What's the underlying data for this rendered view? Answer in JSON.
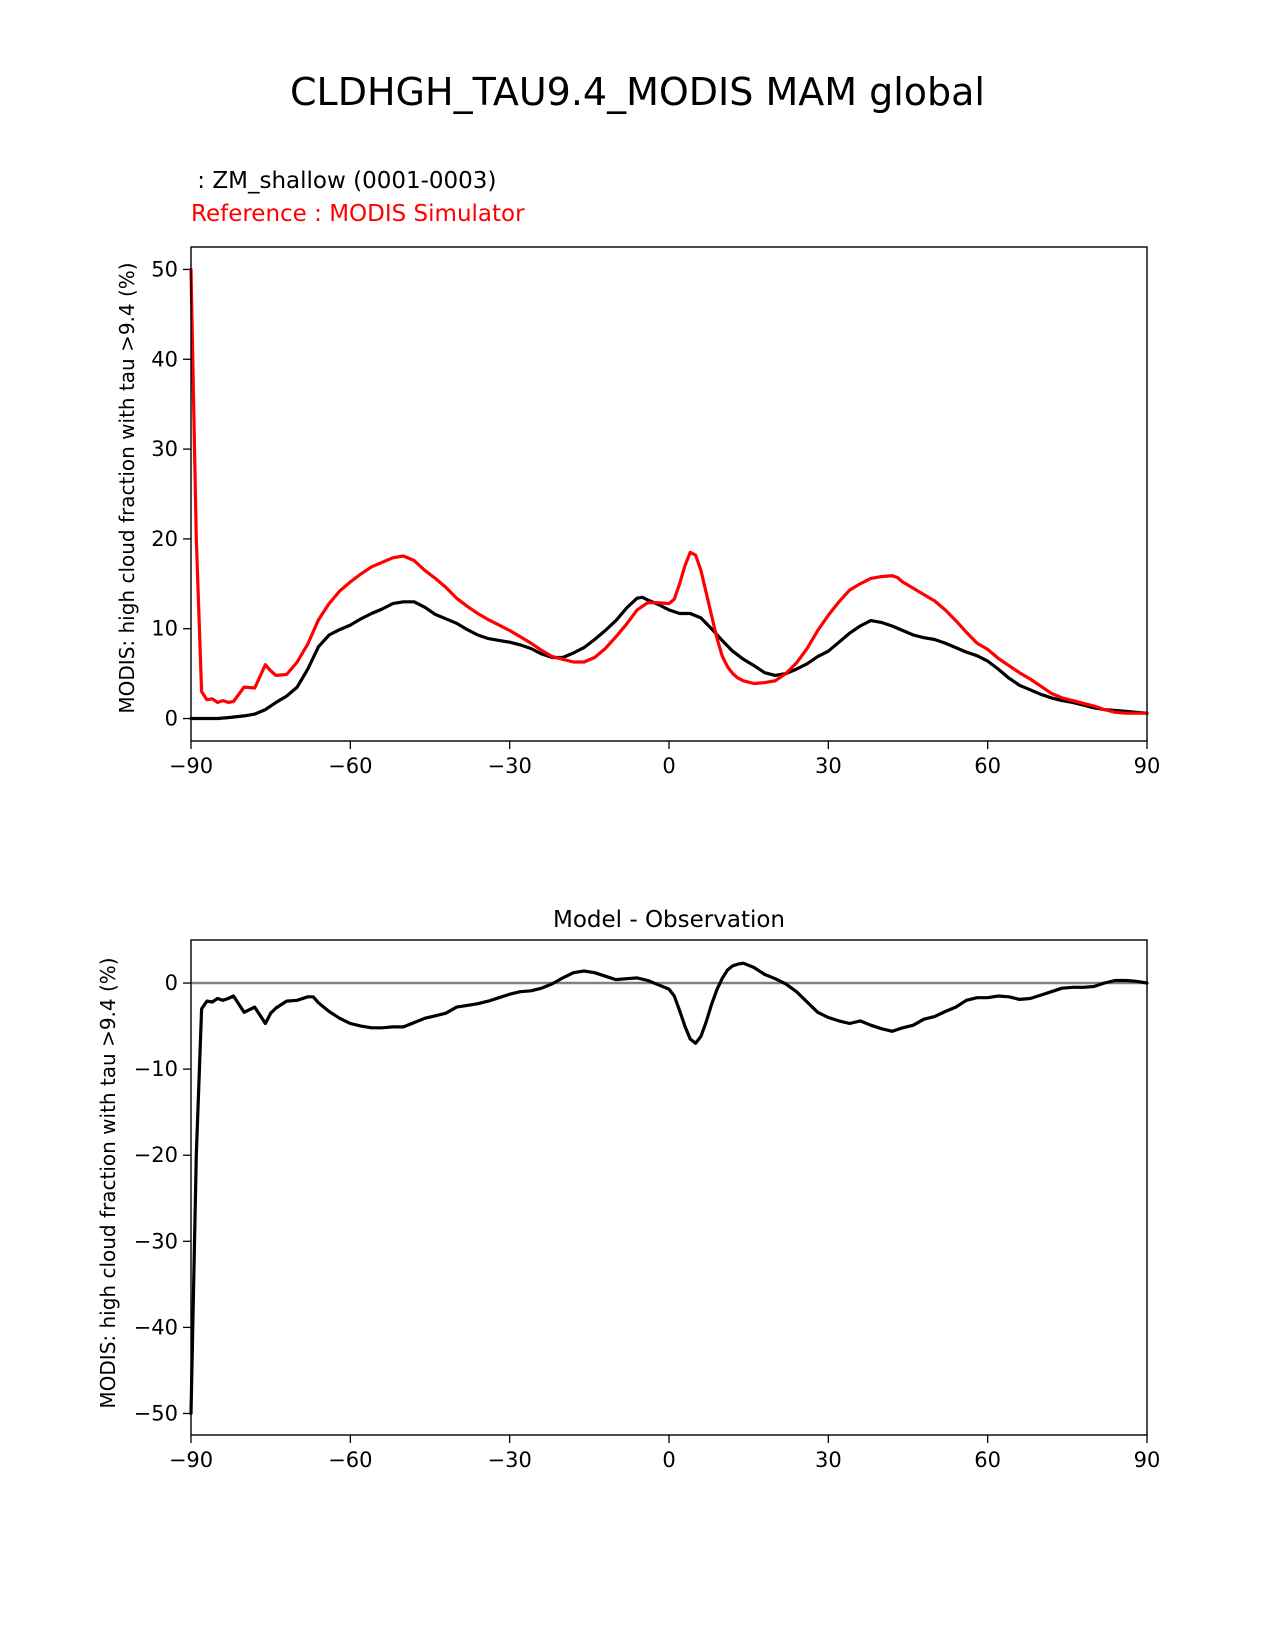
{
  "figure": {
    "title": "CLDHGH_TAU9.4_MODIS MAM global"
  },
  "chart_data": [
    {
      "type": "line",
      "test_label": " : ZM_shallow (0001-0003)",
      "reference_label": "Reference : MODIS Simulator",
      "ylabel": "MODIS: high cloud fraction with tau >9.4 (%)",
      "xlabel": "",
      "xlim": [
        -90,
        90
      ],
      "ylim": [
        -2.5,
        52.5
      ],
      "xticks": [
        -90,
        -60,
        -30,
        0,
        30,
        60,
        90
      ],
      "xtick_labels": [
        "−90",
        "−60",
        "−30",
        "0",
        "30",
        "60",
        "90"
      ],
      "yticks": [
        0,
        10,
        20,
        30,
        40,
        50
      ],
      "ytick_labels": [
        "0",
        "10",
        "20",
        "30",
        "40",
        "50"
      ],
      "grid": false,
      "colors": {
        "test": "#000000",
        "reference": "#ff0000"
      },
      "series": [
        {
          "role": "test",
          "x": [
            -90,
            -88,
            -85,
            -83,
            -80,
            -78,
            -76,
            -74,
            -72,
            -70,
            -68,
            -66,
            -64,
            -62,
            -60,
            -58,
            -56,
            -54,
            -52,
            -50,
            -48,
            -46,
            -44,
            -42,
            -40,
            -38,
            -36,
            -34,
            -32,
            -30,
            -28,
            -26,
            -24,
            -22,
            -20,
            -18,
            -16,
            -14,
            -12,
            -10,
            -8,
            -6,
            -5,
            -4,
            -2,
            0,
            2,
            4,
            6,
            8,
            10,
            12,
            14,
            16,
            18,
            20,
            22,
            24,
            26,
            28,
            30,
            32,
            34,
            36,
            38,
            40,
            42,
            44,
            46,
            48,
            50,
            52,
            54,
            56,
            58,
            60,
            62,
            64,
            66,
            68,
            70,
            72,
            74,
            76,
            78,
            80,
            82,
            84,
            86,
            88,
            90
          ],
          "values": [
            0.0,
            0.0,
            0.0,
            0.1,
            0.3,
            0.5,
            1.0,
            1.8,
            2.5,
            3.5,
            5.5,
            8.0,
            9.3,
            9.9,
            10.4,
            11.1,
            11.7,
            12.2,
            12.8,
            13.0,
            13.0,
            12.4,
            11.6,
            11.1,
            10.6,
            9.9,
            9.3,
            8.9,
            8.7,
            8.5,
            8.2,
            7.8,
            7.2,
            6.8,
            6.8,
            7.3,
            7.9,
            8.8,
            9.8,
            10.9,
            12.3,
            13.4,
            13.5,
            13.2,
            12.7,
            12.1,
            11.7,
            11.7,
            11.2,
            10.0,
            8.7,
            7.5,
            6.6,
            5.9,
            5.1,
            4.8,
            5.0,
            5.5,
            6.1,
            6.9,
            7.5,
            8.5,
            9.5,
            10.3,
            10.9,
            10.7,
            10.3,
            9.8,
            9.3,
            9.0,
            8.8,
            8.4,
            7.9,
            7.4,
            7.0,
            6.4,
            5.5,
            4.5,
            3.7,
            3.2,
            2.7,
            2.3,
            2.0,
            1.8,
            1.5,
            1.2,
            1.0,
            0.9,
            0.8,
            0.7,
            0.6
          ]
        },
        {
          "role": "reference",
          "x": [
            -90,
            -89,
            -88,
            -87,
            -86,
            -85,
            -84,
            -83,
            -82,
            -80,
            -78,
            -76,
            -75,
            -74,
            -72,
            -70,
            -68,
            -66,
            -64,
            -62,
            -60,
            -58,
            -56,
            -54,
            -52,
            -50,
            -48,
            -46,
            -44,
            -42,
            -40,
            -38,
            -36,
            -34,
            -32,
            -30,
            -28,
            -26,
            -24,
            -22,
            -20,
            -18,
            -16,
            -14,
            -12,
            -10,
            -8,
            -6,
            -4,
            -2,
            0,
            1,
            2,
            3,
            4,
            5,
            6,
            7,
            8,
            9,
            10,
            11,
            12,
            13,
            14,
            16,
            18,
            20,
            22,
            24,
            26,
            28,
            30,
            32,
            34,
            36,
            38,
            40,
            42,
            43,
            44,
            46,
            48,
            50,
            52,
            54,
            56,
            58,
            60,
            62,
            64,
            66,
            68,
            70,
            72,
            74,
            76,
            78,
            80,
            82,
            84,
            86,
            88,
            90
          ],
          "values": [
            50.0,
            20.0,
            3.0,
            2.1,
            2.2,
            1.8,
            2.0,
            1.8,
            1.9,
            3.5,
            3.4,
            6.0,
            5.3,
            4.8,
            4.9,
            6.3,
            8.3,
            11.0,
            12.8,
            14.2,
            15.2,
            16.1,
            16.9,
            17.4,
            17.9,
            18.1,
            17.6,
            16.5,
            15.6,
            14.6,
            13.4,
            12.5,
            11.7,
            11.0,
            10.4,
            9.8,
            9.1,
            8.4,
            7.6,
            6.9,
            6.6,
            6.3,
            6.3,
            6.8,
            7.8,
            9.1,
            10.5,
            12.1,
            12.9,
            12.9,
            12.8,
            13.3,
            15.0,
            17.0,
            18.5,
            18.2,
            16.5,
            14.0,
            11.5,
            9.0,
            7.0,
            5.8,
            5.0,
            4.5,
            4.2,
            3.9,
            4.0,
            4.2,
            5.0,
            6.2,
            7.8,
            9.8,
            11.5,
            13.0,
            14.3,
            15.0,
            15.6,
            15.8,
            15.9,
            15.7,
            15.2,
            14.5,
            13.8,
            13.1,
            12.1,
            10.9,
            9.6,
            8.4,
            7.7,
            6.7,
            5.9,
            5.1,
            4.4,
            3.6,
            2.8,
            2.3,
            2.0,
            1.7,
            1.4,
            1.0,
            0.7,
            0.6,
            0.6,
            0.6
          ]
        }
      ]
    },
    {
      "type": "line",
      "title": "Model - Observation",
      "ylabel": "MODIS: high cloud fraction with tau >9.4 (%)",
      "xlabel": "",
      "xlim": [
        -90,
        90
      ],
      "ylim": [
        -52.5,
        5.0
      ],
      "xticks": [
        -90,
        -60,
        -30,
        0,
        30,
        60,
        90
      ],
      "xtick_labels": [
        "−90",
        "−60",
        "−30",
        "0",
        "30",
        "60",
        "90"
      ],
      "yticks": [
        -50,
        -40,
        -30,
        -20,
        -10,
        0
      ],
      "ytick_labels": [
        "−50",
        "−40",
        "−30",
        "−20",
        "−10",
        "0"
      ],
      "grid": false,
      "zero_line": true,
      "colors": {
        "difference": "#000000",
        "zero_line": "#808080"
      },
      "series": [
        {
          "role": "difference",
          "x": [
            -90,
            -89,
            -88,
            -87,
            -86,
            -85,
            -84,
            -83,
            -82,
            -80,
            -78,
            -76,
            -75,
            -74,
            -72,
            -70,
            -68,
            -67,
            -66,
            -64,
            -62,
            -60,
            -58,
            -56,
            -54,
            -52,
            -50,
            -48,
            -46,
            -44,
            -42,
            -40,
            -38,
            -36,
            -34,
            -32,
            -30,
            -28,
            -26,
            -24,
            -22,
            -20,
            -18,
            -16,
            -14,
            -12,
            -10,
            -8,
            -6,
            -4,
            -2,
            0,
            1,
            2,
            3,
            4,
            5,
            6,
            7,
            8,
            9,
            10,
            11,
            12,
            13,
            14,
            16,
            18,
            20,
            22,
            24,
            26,
            28,
            30,
            32,
            34,
            36,
            38,
            40,
            42,
            43,
            44,
            46,
            48,
            50,
            52,
            54,
            56,
            58,
            60,
            62,
            64,
            66,
            68,
            70,
            72,
            74,
            76,
            78,
            80,
            82,
            84,
            86,
            88,
            90
          ],
          "values": [
            -50.0,
            -20.0,
            -3.0,
            -2.1,
            -2.2,
            -1.8,
            -2.0,
            -1.8,
            -1.5,
            -3.4,
            -2.8,
            -4.7,
            -3.5,
            -2.9,
            -2.1,
            -2.0,
            -1.6,
            -1.6,
            -2.3,
            -3.3,
            -4.1,
            -4.7,
            -5.0,
            -5.2,
            -5.2,
            -5.1,
            -5.1,
            -4.6,
            -4.1,
            -3.8,
            -3.5,
            -2.8,
            -2.6,
            -2.4,
            -2.1,
            -1.7,
            -1.3,
            -1.0,
            -0.9,
            -0.6,
            -0.1,
            0.6,
            1.2,
            1.4,
            1.2,
            0.8,
            0.4,
            0.5,
            0.6,
            0.3,
            -0.2,
            -0.7,
            -1.5,
            -3.2,
            -5.0,
            -6.5,
            -7.0,
            -6.2,
            -4.5,
            -2.5,
            -0.8,
            0.5,
            1.5,
            2.0,
            2.2,
            2.3,
            1.8,
            1.0,
            0.5,
            -0.1,
            -1.0,
            -2.2,
            -3.4,
            -4.0,
            -4.4,
            -4.7,
            -4.4,
            -4.9,
            -5.3,
            -5.6,
            -5.4,
            -5.2,
            -4.9,
            -4.2,
            -3.9,
            -3.3,
            -2.8,
            -2.0,
            -1.7,
            -1.7,
            -1.5,
            -1.6,
            -1.9,
            -1.8,
            -1.4,
            -1.0,
            -0.6,
            -0.5,
            -0.5,
            -0.4,
            0.0,
            0.3,
            0.3,
            0.2,
            0.0
          ]
        }
      ]
    }
  ]
}
